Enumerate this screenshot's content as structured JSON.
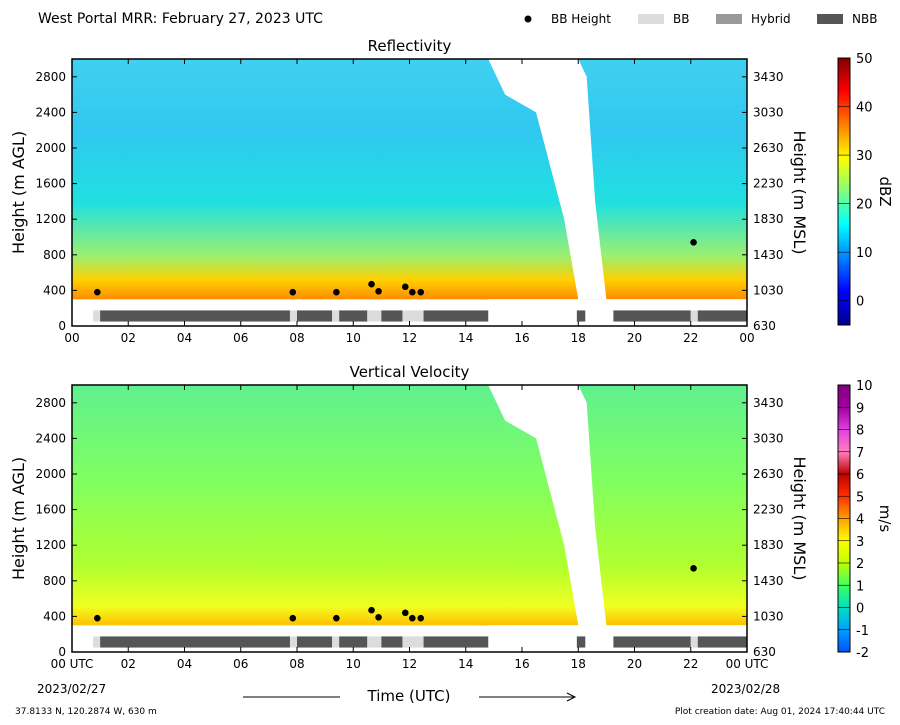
{
  "header": {
    "title": "West Portal MRR:  February 27, 2023 UTC",
    "legend": [
      {
        "label": "BB Height",
        "kind": "dot",
        "color": "#000000"
      },
      {
        "label": "BB",
        "kind": "swatch",
        "color": "#dcdcdc"
      },
      {
        "label": "Hybrid",
        "kind": "swatch",
        "color": "#999999"
      },
      {
        "label": "NBB",
        "kind": "swatch",
        "color": "#555555"
      }
    ]
  },
  "footer": {
    "location": "37.8133 N, 120.2874 W, 630 m",
    "creation": "Plot creation date: Aug 01, 2024 17:40:44 UTC",
    "xlabel": "Time (UTC)",
    "start_date": "2023/02/27",
    "end_date": "2023/02/28"
  },
  "chart_data": [
    {
      "type": "heatmap",
      "title": "Reflectivity",
      "ylabel": "Height (m AGL)",
      "ylabel_right": "Height (m MSL)",
      "xlim": [
        0,
        24
      ],
      "ylim": [
        0,
        3000
      ],
      "xticks": [
        "00",
        "02",
        "04",
        "06",
        "08",
        "10",
        "12",
        "14",
        "16",
        "18",
        "20",
        "22",
        "00"
      ],
      "yticks": [
        0,
        400,
        800,
        1200,
        1600,
        2000,
        2400,
        2800
      ],
      "yticks_right": [
        630,
        1030,
        1430,
        1830,
        2230,
        2630,
        3030,
        3430
      ],
      "colorbar": {
        "label": "dBZ",
        "min": -5,
        "max": 50,
        "ticks": [
          0,
          10,
          20,
          30,
          40,
          50
        ],
        "palette": [
          "#00008f",
          "#0000ff",
          "#0080ff",
          "#00ffff",
          "#80ff80",
          "#ffff00",
          "#ff8000",
          "#ff0000",
          "#800000"
        ]
      },
      "data_extents": [
        {
          "start": 0.0,
          "end": 14.8,
          "top": 3000
        },
        {
          "start": 14.5,
          "end": 24.0,
          "top": 3000
        }
      ],
      "bb_height_points": [
        {
          "x": 0.9,
          "y": 380
        },
        {
          "x": 7.85,
          "y": 380
        },
        {
          "x": 9.4,
          "y": 380
        },
        {
          "x": 10.65,
          "y": 470
        },
        {
          "x": 10.9,
          "y": 390
        },
        {
          "x": 11.85,
          "y": 440
        },
        {
          "x": 12.1,
          "y": 380
        },
        {
          "x": 12.4,
          "y": 380
        },
        {
          "x": 22.1,
          "y": 940
        }
      ],
      "bb_type_segments": [
        {
          "start": 0.75,
          "end": 1.0,
          "type": "BB"
        },
        {
          "start": 1.0,
          "end": 7.75,
          "type": "NBB"
        },
        {
          "start": 7.75,
          "end": 8.0,
          "type": "BB"
        },
        {
          "start": 8.0,
          "end": 9.25,
          "type": "NBB"
        },
        {
          "start": 9.25,
          "end": 9.5,
          "type": "BB"
        },
        {
          "start": 9.5,
          "end": 10.5,
          "type": "NBB"
        },
        {
          "start": 10.5,
          "end": 11.0,
          "type": "BB"
        },
        {
          "start": 11.0,
          "end": 11.75,
          "type": "NBB"
        },
        {
          "start": 11.75,
          "end": 12.5,
          "type": "BB"
        },
        {
          "start": 12.5,
          "end": 14.8,
          "type": "NBB"
        },
        {
          "start": 17.95,
          "end": 18.25,
          "type": "NBB"
        },
        {
          "start": 19.25,
          "end": 22.0,
          "type": "NBB"
        },
        {
          "start": 22.0,
          "end": 22.25,
          "type": "BB"
        },
        {
          "start": 22.25,
          "end": 24.0,
          "type": "NBB"
        }
      ]
    },
    {
      "type": "heatmap",
      "title": "Vertical Velocity",
      "ylabel": "Height (m AGL)",
      "ylabel_right": "Height (m MSL)",
      "xlim": [
        0,
        24
      ],
      "ylim": [
        0,
        3000
      ],
      "xticks": [
        "00 UTC",
        "02",
        "04",
        "06",
        "08",
        "10",
        "12",
        "14",
        "16",
        "18",
        "20",
        "22",
        "00 UTC"
      ],
      "yticks": [
        0,
        400,
        800,
        1200,
        1600,
        2000,
        2400,
        2800
      ],
      "yticks_right": [
        630,
        1030,
        1430,
        1830,
        2230,
        2630,
        3030,
        3430
      ],
      "colorbar": {
        "label": "m/s",
        "min": -2,
        "max": 10,
        "ticks": [
          -2,
          -1,
          0,
          1,
          2,
          3,
          4,
          5,
          6,
          7,
          8,
          9,
          10
        ],
        "palette": [
          "#0050ff",
          "#00a0ff",
          "#00e0c0",
          "#40ff60",
          "#c0ff00",
          "#ffff00",
          "#ffa000",
          "#ff3000",
          "#c00000",
          "#ff80c0",
          "#e040e0",
          "#a000a0",
          "#800080"
        ]
      },
      "data_extents": [
        {
          "start": 0.0,
          "end": 14.8,
          "top": 3000
        },
        {
          "start": 14.5,
          "end": 24.0,
          "top": 3000
        }
      ],
      "bb_height_points": [
        {
          "x": 0.9,
          "y": 380
        },
        {
          "x": 7.85,
          "y": 380
        },
        {
          "x": 9.4,
          "y": 380
        },
        {
          "x": 10.65,
          "y": 470
        },
        {
          "x": 10.9,
          "y": 390
        },
        {
          "x": 11.85,
          "y": 440
        },
        {
          "x": 12.1,
          "y": 380
        },
        {
          "x": 12.4,
          "y": 380
        },
        {
          "x": 22.1,
          "y": 940
        }
      ],
      "bb_type_segments": [
        {
          "start": 0.75,
          "end": 1.0,
          "type": "BB"
        },
        {
          "start": 1.0,
          "end": 7.75,
          "type": "NBB"
        },
        {
          "start": 7.75,
          "end": 8.0,
          "type": "BB"
        },
        {
          "start": 8.0,
          "end": 9.25,
          "type": "NBB"
        },
        {
          "start": 9.25,
          "end": 9.5,
          "type": "BB"
        },
        {
          "start": 9.5,
          "end": 10.5,
          "type": "NBB"
        },
        {
          "start": 10.5,
          "end": 11.0,
          "type": "BB"
        },
        {
          "start": 11.0,
          "end": 11.75,
          "type": "NBB"
        },
        {
          "start": 11.75,
          "end": 12.5,
          "type": "BB"
        },
        {
          "start": 12.5,
          "end": 14.8,
          "type": "NBB"
        },
        {
          "start": 17.95,
          "end": 18.25,
          "type": "NBB"
        },
        {
          "start": 19.25,
          "end": 22.0,
          "type": "NBB"
        },
        {
          "start": 22.0,
          "end": 22.25,
          "type": "BB"
        },
        {
          "start": 22.25,
          "end": 24.0,
          "type": "NBB"
        }
      ]
    }
  ]
}
